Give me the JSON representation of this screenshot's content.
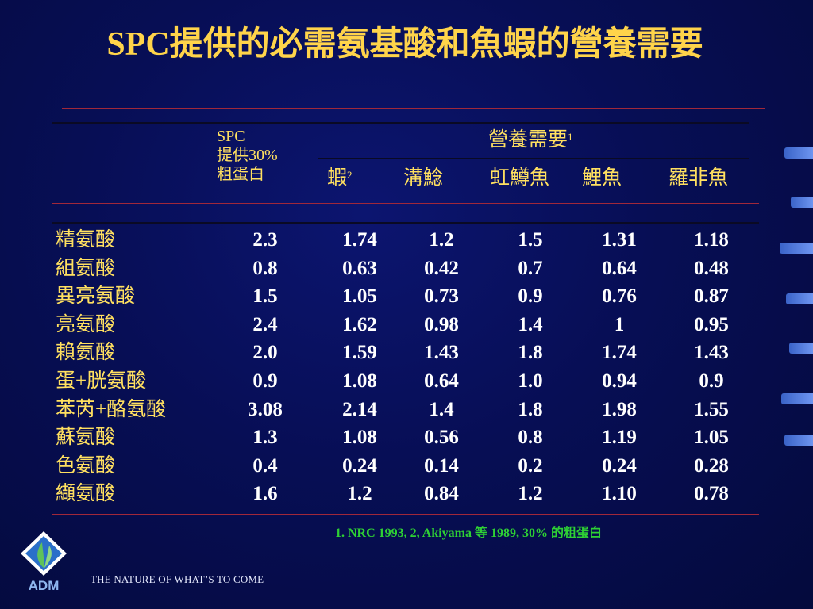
{
  "title": "SPC提供的必需氨基酸和魚蝦的營養需要",
  "header": {
    "spc_line1": "SPC",
    "spc_line2": "提供30%",
    "spc_line3": "粗蛋白",
    "requirement": "營養需要",
    "requirement_sup": "1",
    "species": [
      {
        "name": "蝦",
        "sup": "2"
      },
      {
        "name": "溝鯰",
        "sup": ""
      },
      {
        "name": "虹鱒魚",
        "sup": ""
      },
      {
        "name": "鯉魚",
        "sup": ""
      },
      {
        "name": "羅非魚",
        "sup": ""
      }
    ]
  },
  "rows": [
    {
      "amino_acid": "精氨酸",
      "values": [
        "2.3",
        "1.74",
        "1.2",
        "1.5",
        "1.31",
        "1.18"
      ]
    },
    {
      "amino_acid": "組氨酸",
      "values": [
        "0.8",
        "0.63",
        "0.42",
        "0.7",
        "0.64",
        "0.48"
      ]
    },
    {
      "amino_acid": "異亮氨酸",
      "values": [
        "1.5",
        "1.05",
        "0.73",
        "0.9",
        "0.76",
        "0.87"
      ]
    },
    {
      "amino_acid": "亮氨酸",
      "values": [
        "2.4",
        "1.62",
        "0.98",
        "1.4",
        "1",
        "0.95"
      ]
    },
    {
      "amino_acid": "賴氨酸",
      "values": [
        "2.0",
        "1.59",
        "1.43",
        "1.8",
        "1.74",
        "1.43"
      ]
    },
    {
      "amino_acid": "蛋+胱氨酸",
      "values": [
        "0.9",
        "1.08",
        "0.64",
        "1.0",
        "0.94",
        "0.9"
      ]
    },
    {
      "amino_acid": "苯芮+酪氨酸",
      "values": [
        "3.08",
        "2.14",
        "1.4",
        "1.8",
        "1.98",
        "1.55"
      ]
    },
    {
      "amino_acid": "蘇氨酸",
      "values": [
        "1.3",
        "1.08",
        "0.56",
        "0.8",
        "1.19",
        "1.05"
      ]
    },
    {
      "amino_acid": "色氨酸",
      "values": [
        "0.4",
        "0.24",
        "0.14",
        "0.2",
        "0.24",
        "0.28"
      ]
    },
    {
      "amino_acid": "纈氨酸",
      "values": [
        "1.6",
        "1.2",
        "0.84",
        "1.2",
        "1.10",
        "0.78"
      ]
    }
  ],
  "footnote": "1.  NRC 1993, 2, Akiyama 等 1989, 30% 的粗蛋白",
  "logo_text": "ADM",
  "tagline": "THE NATURE OF WHAT’S TO COME",
  "colors": {
    "background": "#070e55",
    "title": "#ffd44a",
    "label": "#ffe060",
    "value": "#ffffff",
    "rule": "#a0283a",
    "footnote": "#2ed134",
    "deco_accent": "#4f79dc"
  }
}
